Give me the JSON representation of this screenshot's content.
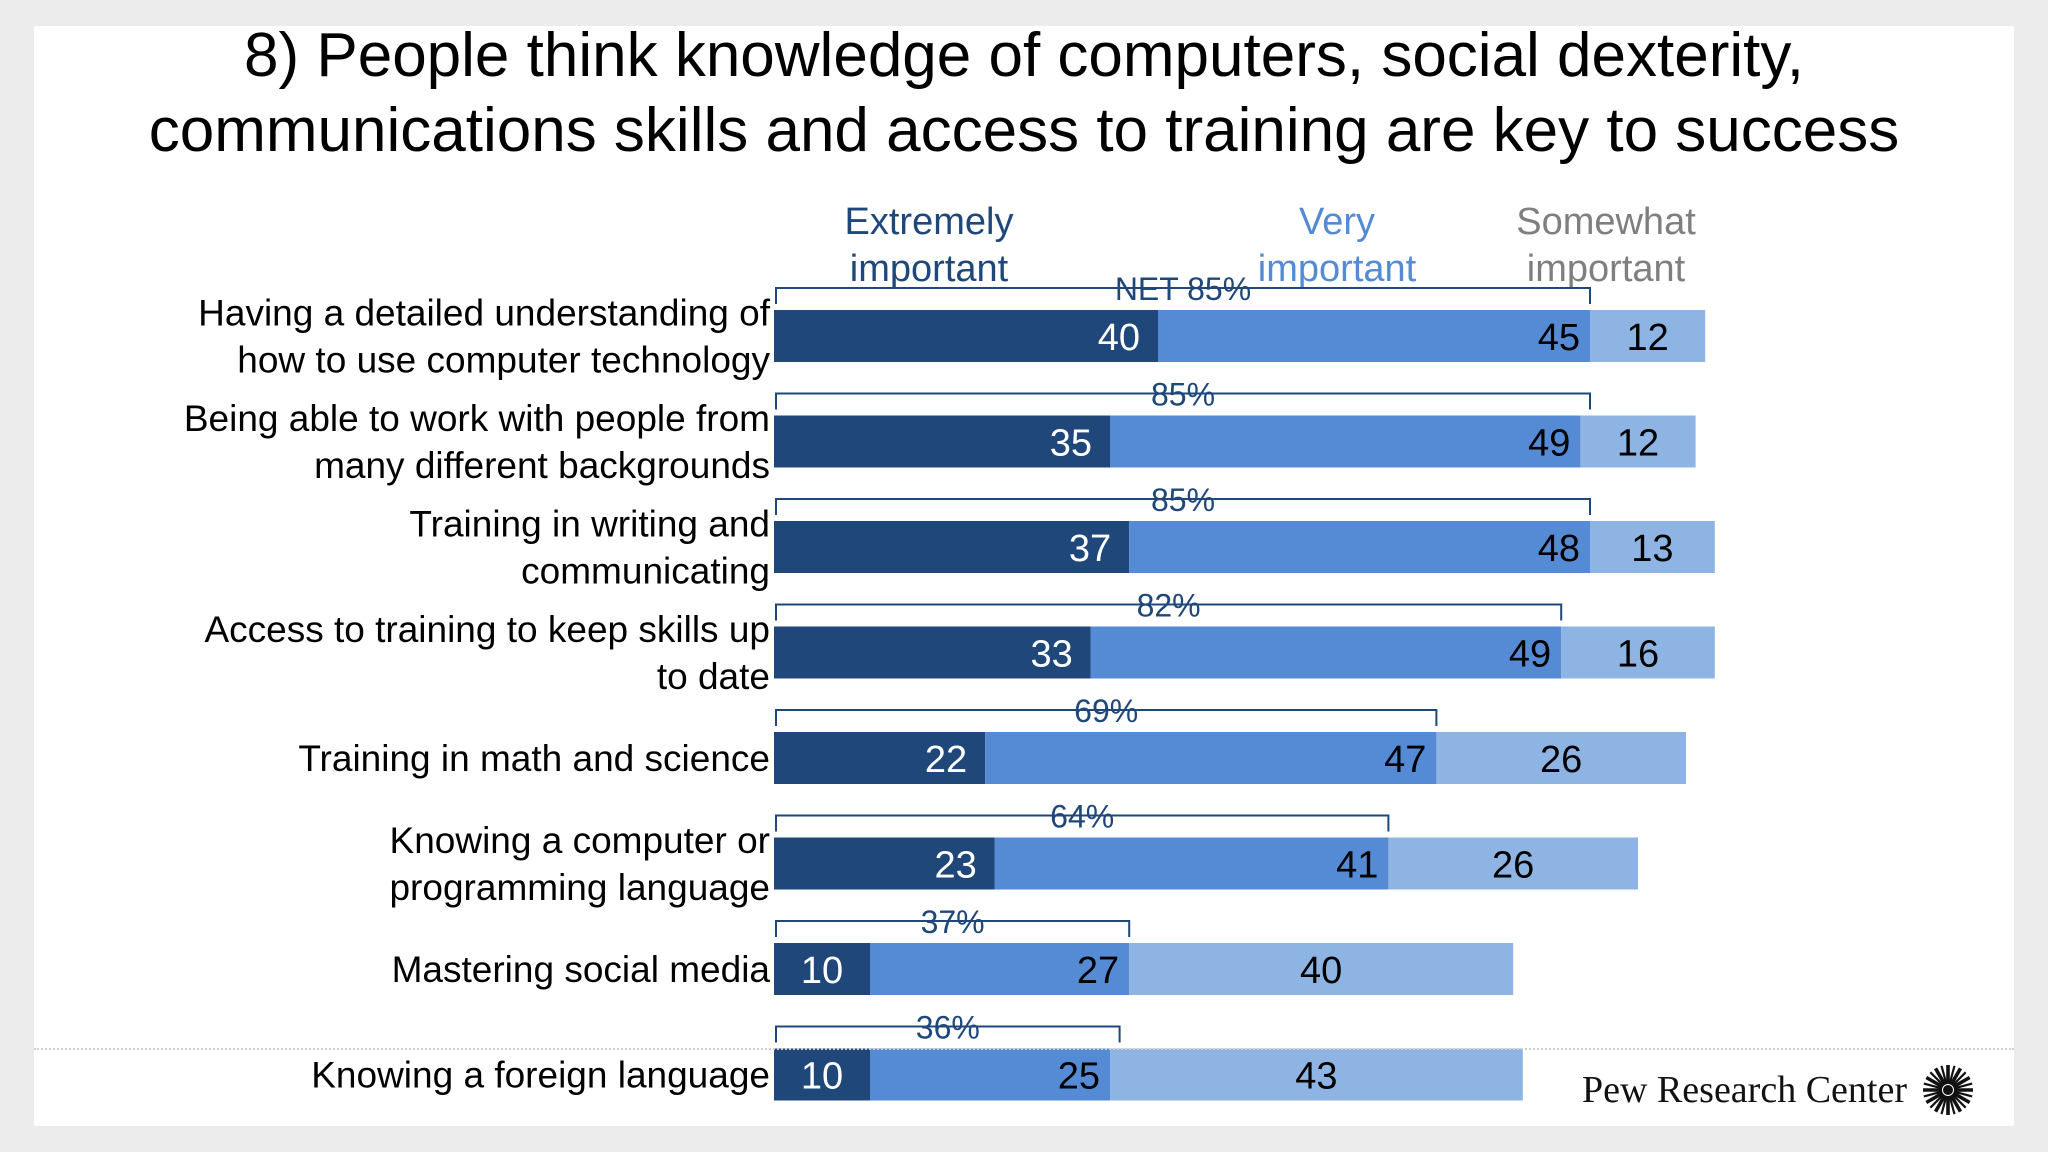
{
  "slide": {
    "title_line1": "8)  People think knowledge of computers, social dexterity,",
    "title_line2": "communications skills and access to training are key to success"
  },
  "logo": {
    "text": "Pew Research Center",
    "icon": "pew-sunburst-icon"
  },
  "colors": {
    "extremely": "#1f477a",
    "very": "#548bd4",
    "somewhat": "#8db4e2",
    "bracket": "#1f477a",
    "legend_extremely": "#1f477a",
    "legend_very": "#548bd4",
    "legend_somewhat": "#7f7f7f"
  },
  "chart_data": {
    "type": "bar",
    "orientation": "horizontal",
    "stacked": true,
    "title": "8)  People think knowledge of computers, social dexterity, communications skills and access to training are key to success",
    "legend": [
      {
        "name": "Extremely important",
        "line1": "Extremely",
        "line2": "important"
      },
      {
        "name": "Very important",
        "line1": "Very",
        "line2": "important"
      },
      {
        "name": "Somewhat important",
        "line1": "Somewhat",
        "line2": "important"
      }
    ],
    "categories": [
      [
        "Having a detailed understanding of",
        "how to use computer technology"
      ],
      [
        "Being able to work with people from",
        "many different backgrounds"
      ],
      [
        "Training in writing and",
        "communicating"
      ],
      [
        "Access to training to keep skills up",
        "to date"
      ],
      [
        "Training in math and science"
      ],
      [
        "Knowing a computer or",
        "programming language"
      ],
      [
        "Mastering social media"
      ],
      [
        "Knowing a foreign language"
      ]
    ],
    "series": [
      {
        "name": "Extremely important",
        "values": [
          40,
          35,
          37,
          33,
          22,
          23,
          10,
          10
        ]
      },
      {
        "name": "Very important",
        "values": [
          45,
          49,
          48,
          49,
          47,
          41,
          27,
          25
        ]
      },
      {
        "name": "Somewhat important",
        "values": [
          12,
          12,
          13,
          16,
          26,
          26,
          40,
          43
        ]
      }
    ],
    "net_labels": [
      "NET 85%",
      "85%",
      "85%",
      "82%",
      "69%",
      "64%",
      "37%",
      "36%"
    ],
    "net_values": [
      85,
      85,
      85,
      82,
      69,
      64,
      37,
      36
    ],
    "xlim": [
      0,
      100
    ]
  }
}
